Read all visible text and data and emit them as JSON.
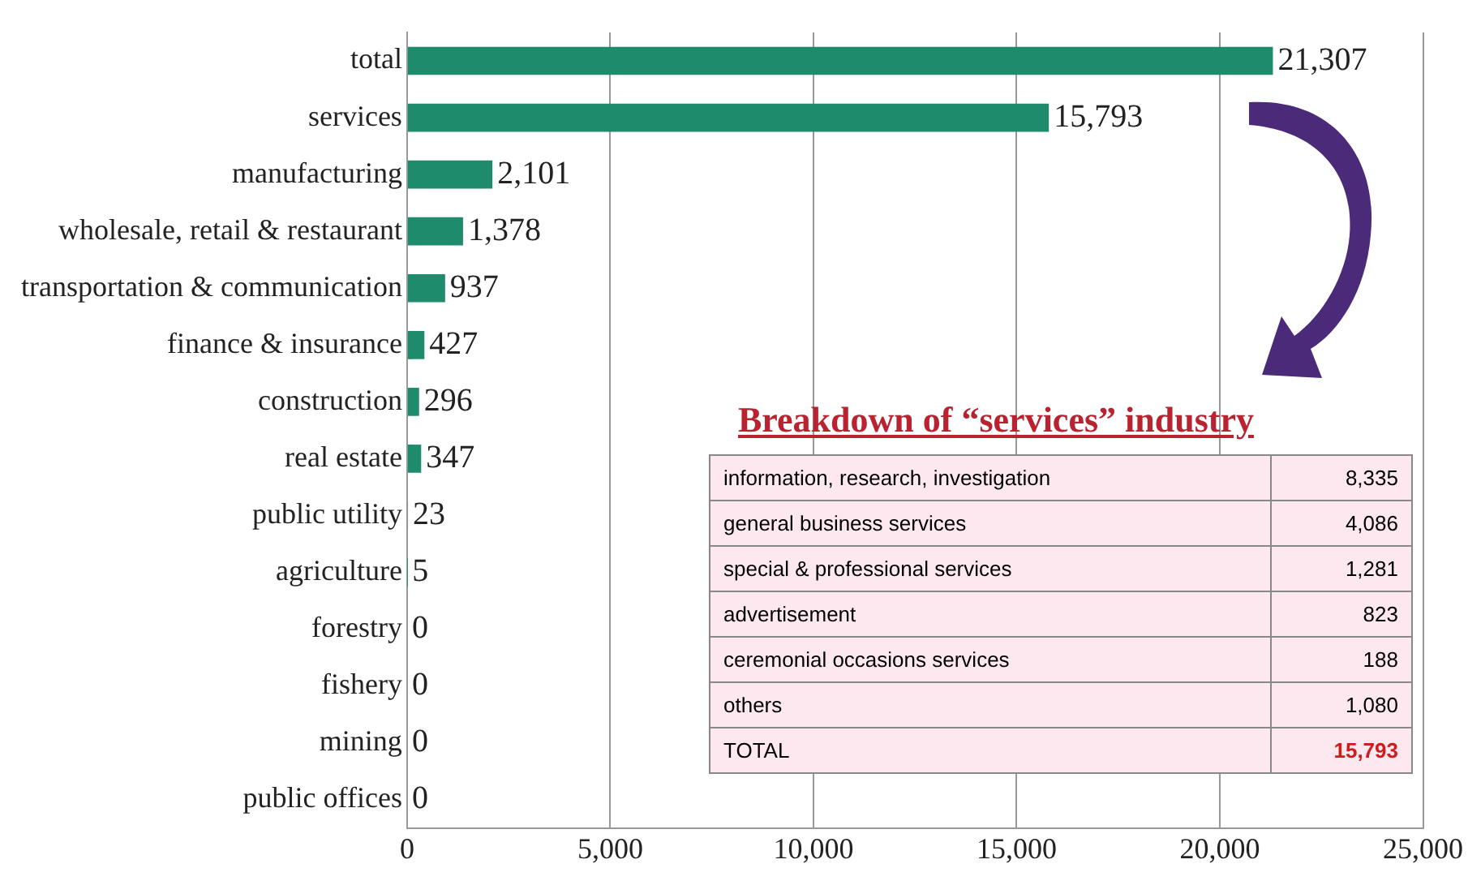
{
  "chart_data": [
    {
      "type": "bar",
      "orientation": "horizontal",
      "categories": [
        "total",
        "services",
        "manufacturing",
        "wholesale, retail & restaurant",
        "transportation & communication",
        "finance & insurance",
        "construction",
        "real estate",
        "public utility",
        "agriculture",
        "forestry",
        "fishery",
        "mining",
        "public offices"
      ],
      "values": [
        21307,
        15793,
        2101,
        1378,
        937,
        427,
        296,
        347,
        23,
        5,
        0,
        0,
        0,
        0
      ],
      "value_labels": [
        "21,307",
        "15,793",
        "2,101",
        "1,378",
        "937",
        "427",
        "296",
        "347",
        "23",
        "5",
        "0",
        "0",
        "0",
        "0"
      ],
      "color": "#1e8c6c",
      "xlim": [
        0,
        25000
      ],
      "xticks": [
        0,
        {
          "value": 5000,
          "label": "5,000"
        },
        {
          "value": 10000,
          "label": "10,000"
        },
        {
          "value": 15000,
          "label": "15,000"
        },
        {
          "value": 20000,
          "label": "20,000"
        },
        {
          "value": 25000,
          "label": "25,000"
        }
      ],
      "grid": "x"
    },
    {
      "type": "other",
      "title": "Breakdown of “services” industry",
      "categories": [
        "information, research, investigation",
        "general business services",
        "special & professional services",
        "advertisement",
        "ceremonial occasions services",
        "others",
        "TOTAL"
      ],
      "values": [
        8335,
        4086,
        1281,
        823,
        188,
        1080,
        15793
      ],
      "value_labels": [
        "8,335",
        "4,086",
        "1,281",
        "823",
        "188",
        "1,080",
        "15,793"
      ]
    }
  ]
}
